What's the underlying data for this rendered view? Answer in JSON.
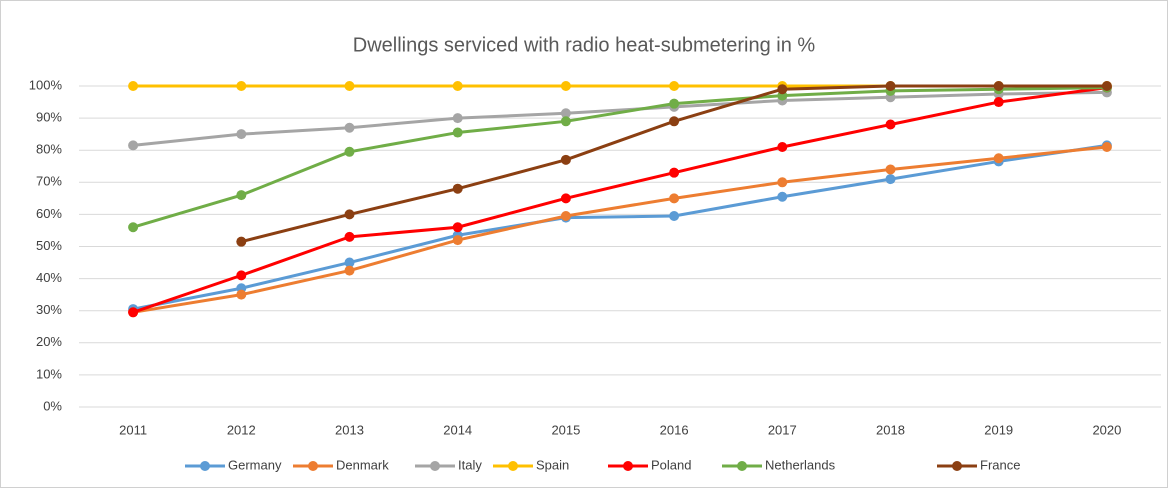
{
  "chart_data": {
    "type": "line",
    "title": "Dwellings serviced with radio heat-submetering in %",
    "categories": [
      "2011",
      "2012",
      "2013",
      "2014",
      "2015",
      "2016",
      "2017",
      "2018",
      "2019",
      "2020"
    ],
    "series": [
      {
        "name": "Germany",
        "color": "#5b9bd5",
        "values": [
          30.5,
          37,
          45,
          53.5,
          59,
          59.5,
          65.5,
          71,
          76.5,
          81.5
        ]
      },
      {
        "name": "Denmark",
        "color": "#ed7d31",
        "values": [
          29.5,
          35,
          42.5,
          52,
          59.5,
          65,
          70,
          74,
          77.5,
          81
        ]
      },
      {
        "name": "Italy",
        "color": "#a5a5a5",
        "values": [
          81.5,
          85,
          87,
          90,
          91.5,
          93.5,
          95.5,
          96.5,
          97.5,
          98
        ]
      },
      {
        "name": "Spain",
        "color": "#ffc000",
        "values": [
          100,
          100,
          100,
          100,
          100,
          100,
          100,
          100,
          100,
          100
        ]
      },
      {
        "name": "Poland",
        "color": "#ff0000",
        "values": [
          29.5,
          41,
          53,
          56,
          65,
          73,
          81,
          88,
          95,
          99.5
        ]
      },
      {
        "name": "Netherlands",
        "color": "#70ad47",
        "values": [
          56,
          66,
          79.5,
          85.5,
          89,
          94.5,
          97,
          98.5,
          99,
          99.5
        ]
      },
      {
        "name": "France",
        "color": "#8b3f12",
        "values": [
          null,
          51.5,
          60,
          68,
          77,
          89,
          99,
          100,
          100,
          100
        ]
      }
    ],
    "ylim": [
      0,
      100
    ],
    "yticks": [
      {
        "value": 0,
        "label": "0%"
      },
      {
        "value": 10,
        "label": "10%"
      },
      {
        "value": 20,
        "label": "20%"
      },
      {
        "value": 30,
        "label": "30%"
      },
      {
        "value": 40,
        "label": "40%"
      },
      {
        "value": 50,
        "label": "50%"
      },
      {
        "value": 60,
        "label": "60%"
      },
      {
        "value": 70,
        "label": "70%"
      },
      {
        "value": 80,
        "label": "80%"
      },
      {
        "value": 90,
        "label": "90%"
      },
      {
        "value": 100,
        "label": "100%"
      }
    ],
    "grid": true,
    "legend": "bottom"
  }
}
